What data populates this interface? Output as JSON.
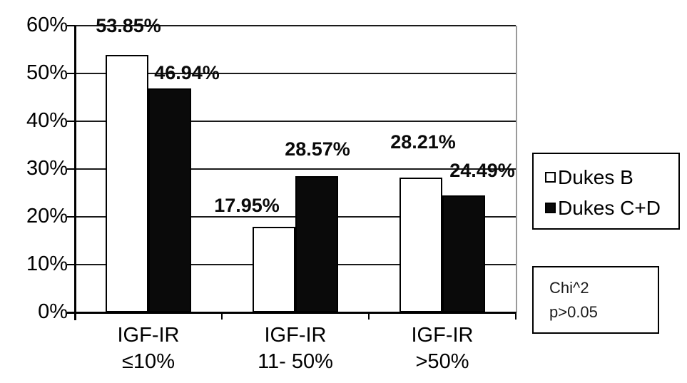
{
  "chart_data": {
    "type": "bar",
    "title": "",
    "xlabel": "",
    "ylabel": "",
    "ylim": [
      0,
      60
    ],
    "ytick_step": 10,
    "ytick_labels": [
      "0%",
      "10%",
      "20%",
      "30%",
      "40%",
      "50%",
      "60%"
    ],
    "grid": true,
    "legend_position": "right-outside",
    "categories": [
      {
        "line1": "IGF-IR",
        "line2": "≤10%"
      },
      {
        "line1": "IGF-IR",
        "line2": "11- 50%"
      },
      {
        "line1": "IGF-IR",
        "line2": ">50%"
      }
    ],
    "series": [
      {
        "name": "Dukes B",
        "fill": "#ffffff",
        "values": [
          53.85,
          17.95,
          28.21
        ],
        "labels": [
          "53.85%",
          "17.95%",
          "28.21%"
        ]
      },
      {
        "name": "Dukes C+D",
        "fill": "#0a0a0a",
        "values": [
          46.94,
          28.57,
          24.49
        ],
        "labels": [
          "46.94%",
          "28.57%",
          "24.49%"
        ]
      }
    ]
  },
  "annotation": {
    "line1": "Chi^2",
    "line2": "p>0.05"
  },
  "colors": {
    "background": "#ffffff",
    "axis": "#000000",
    "grid": "#1a1a1a",
    "frame_right": "#9a9a9a",
    "bar_dukes_b_fill": "#ffffff",
    "bar_dukes_cd_fill": "#0a0a0a",
    "bar_border": "#000000"
  }
}
